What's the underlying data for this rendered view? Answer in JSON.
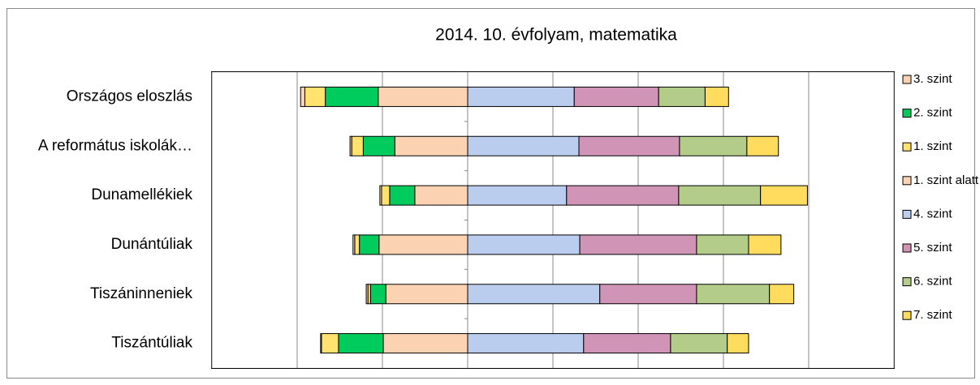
{
  "chart_data": {
    "type": "diverging_bar",
    "title": "2014. 10. évfolyam, matematika",
    "categories": [
      "Országos eloszlás",
      "A református iskolák…",
      "Dunamellékiek",
      "Dunántúliak",
      "Tiszáninneniek",
      "Tiszántúliak"
    ],
    "series": [
      {
        "name": "3. szint",
        "color": "#fcd3b2",
        "side": "left",
        "values": [
          21,
          17.1,
          12.4,
          20.8,
          19.2,
          19.8
        ]
      },
      {
        "name": "2. szint",
        "color": "#00cc5e",
        "side": "left",
        "values": [
          12.4,
          7.4,
          5.9,
          4.6,
          3.6,
          10.5
        ]
      },
      {
        "name": "1. szint",
        "color": "#ffe36e",
        "side": "left",
        "values": [
          4.8,
          2.7,
          1.9,
          1.1,
          0.6,
          4
        ]
      },
      {
        "name": "1. szint alatt",
        "color": "#fcd3b2",
        "side": "left",
        "values": [
          1,
          0.4,
          0.4,
          0.4,
          0.4,
          0.2
        ]
      },
      {
        "name": "4. szint",
        "color": "#bacdef",
        "side": "right",
        "values": [
          25,
          26.1,
          23.2,
          26.3,
          31,
          27.2
        ]
      },
      {
        "name": "5. szint",
        "color": "#d095b6",
        "side": "right",
        "values": [
          19.8,
          23.6,
          26.3,
          27.4,
          22.7,
          20.4
        ]
      },
      {
        "name": "6. szint",
        "color": "#b4cc8a",
        "side": "right",
        "values": [
          10.9,
          15.8,
          19.2,
          12.2,
          17.1,
          13.3
        ]
      },
      {
        "name": "7. szint",
        "color": "#ffdc5e",
        "side": "right",
        "values": [
          5.5,
          7.4,
          11,
          7.6,
          5.7,
          5
        ]
      }
    ],
    "xlim": [
      -60,
      100
    ],
    "xticks": [
      -60,
      -40,
      -20,
      0,
      20,
      40,
      60,
      80,
      100
    ],
    "grid": true,
    "legend": "right"
  }
}
